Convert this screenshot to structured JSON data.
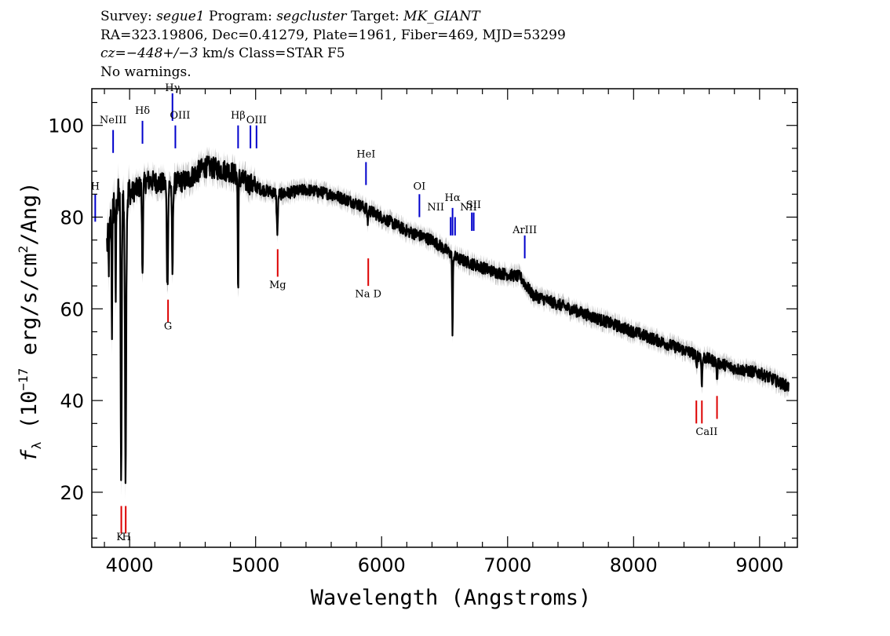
{
  "header": {
    "line1": {
      "survey_label": "Survey: ",
      "survey": "segue1",
      "program_label": " Program: ",
      "program": "segcluster",
      "target_label": " Target: ",
      "target": "MK_GIANT"
    },
    "line2": "RA=323.19806, Dec=0.41279, Plate=1961, Fiber=469, MJD=53299",
    "line3": {
      "cz_prefix": "cz",
      "cz_mid": "=",
      "cz_value": "−448+/−3",
      "cz_suffix": " km/s Class=STAR F5"
    },
    "line4": "No warnings."
  },
  "chart_data": {
    "type": "line",
    "xlabel": "Wavelength (Angstroms)",
    "ylabel": "fλ (10⁻¹⁷ erg/s/cm²/Ang)",
    "xlim": [
      3700,
      9300
    ],
    "ylim": [
      8,
      108
    ],
    "xticks": [
      4000,
      5000,
      6000,
      7000,
      8000,
      9000
    ],
    "yticks": [
      20,
      40,
      60,
      80,
      100
    ],
    "grid": false,
    "colors": {
      "flux": "#000000",
      "error": "#bfbfbf",
      "emission": "#0000cc",
      "absorption": "#dd0000"
    },
    "continuum": [
      [
        3820,
        74
      ],
      [
        3880,
        84
      ],
      [
        3950,
        84
      ],
      [
        4050,
        86
      ],
      [
        4150,
        88
      ],
      [
        4300,
        87
      ],
      [
        4450,
        88
      ],
      [
        4600,
        91
      ],
      [
        4800,
        90
      ],
      [
        4900,
        88
      ],
      [
        5050,
        86
      ],
      [
        5200,
        85
      ],
      [
        5400,
        86
      ],
      [
        5600,
        85
      ],
      [
        5800,
        83
      ],
      [
        6000,
        80
      ],
      [
        6200,
        77
      ],
      [
        6400,
        75
      ],
      [
        6500,
        73
      ],
      [
        6600,
        71
      ],
      [
        6700,
        70
      ],
      [
        6900,
        68
      ],
      [
        7100,
        67
      ],
      [
        7200,
        63
      ],
      [
        7400,
        61
      ],
      [
        7600,
        59
      ],
      [
        7800,
        57
      ],
      [
        8000,
        55
      ],
      [
        8200,
        53
      ],
      [
        8400,
        51
      ],
      [
        8600,
        49
      ],
      [
        8800,
        47
      ],
      [
        9000,
        46
      ],
      [
        9230,
        43
      ]
    ],
    "absorption_features": [
      [
        3835,
        70,
        4
      ],
      [
        3860,
        56,
        3
      ],
      [
        3889,
        61,
        3
      ],
      [
        3933,
        19,
        4
      ],
      [
        3968,
        26,
        5
      ],
      [
        4102,
        68,
        4
      ],
      [
        4300,
        65,
        5
      ],
      [
        4340,
        67,
        4
      ],
      [
        4861,
        64,
        3
      ],
      [
        5172,
        77,
        5
      ],
      [
        5890,
        79,
        4
      ],
      [
        6563,
        54,
        3
      ],
      [
        8498,
        47,
        4
      ],
      [
        8542,
        44,
        4
      ],
      [
        8662,
        45,
        4
      ]
    ],
    "emission_lines": [
      {
        "label": "H",
        "x": 3727,
        "y0": 79,
        "y1": 85,
        "label_y": 86
      },
      {
        "label": "NeIII",
        "x": 3869,
        "y0": 94,
        "y1": 99,
        "label_y": 100.5
      },
      {
        "label": "Hδ",
        "x": 4102,
        "y0": 96,
        "y1": 101,
        "label_y": 102.5
      },
      {
        "label": "Hγ",
        "x": 4340,
        "y0": 101,
        "y1": 107,
        "label_y": 107.5
      },
      {
        "label": "OIII",
        "x": 4363,
        "y0": 95,
        "y1": 100,
        "label_y": 101.5
      },
      {
        "label": "Hβ",
        "x": 4861,
        "y0": 95,
        "y1": 100,
        "label_y": 101.5
      },
      {
        "label": "OIII",
        "x": 4959,
        "y0": 95,
        "y1": 100,
        "label_y": 100.5
      },
      {
        "label": "OIII",
        "x": 5007,
        "y0": 95,
        "y1": 100,
        "label_y": 100.5
      },
      {
        "label": "HeI",
        "x": 5876,
        "y0": 87,
        "y1": 92,
        "label_y": 93
      },
      {
        "label": "OI",
        "x": 6300,
        "y0": 80,
        "y1": 85,
        "label_y": 86
      },
      {
        "label": "NII",
        "x": 6548,
        "y0": 76,
        "y1": 80,
        "label_y": 81.5
      },
      {
        "label": "Hα",
        "x": 6563,
        "y0": 76,
        "y1": 82,
        "label_y": 83.5
      },
      {
        "label": "NII",
        "x": 6583,
        "y0": 76,
        "y1": 80,
        "label_y": 81.5
      },
      {
        "label": "SII",
        "x": 6716,
        "y0": 77,
        "y1": 81,
        "label_y": 82
      },
      {
        "label": "SII",
        "x": 6731,
        "y0": 77,
        "y1": 81,
        "label_y": 82
      },
      {
        "label": "ArIII",
        "x": 7136,
        "y0": 71,
        "y1": 76,
        "label_y": 76.5
      }
    ],
    "emission_labels": [
      {
        "text": "H",
        "x": 3727,
        "y": 86
      },
      {
        "text": "NeIII",
        "x": 3869,
        "y": 100.5
      },
      {
        "text": "Hδ",
        "x": 4102,
        "y": 102.5
      },
      {
        "text": "Hγ",
        "x": 4340,
        "y": 107.5
      },
      {
        "text": "OIII",
        "x": 4400,
        "y": 101.5
      },
      {
        "text": "Hβ",
        "x": 4861,
        "y": 101.5
      },
      {
        "text": "OIII",
        "x": 5007,
        "y": 100.5
      },
      {
        "text": "HeI",
        "x": 5876,
        "y": 93
      },
      {
        "text": "OI",
        "x": 6300,
        "y": 86
      },
      {
        "text": "NII",
        "x": 6430,
        "y": 81.5
      },
      {
        "text": "Hα",
        "x": 6563,
        "y": 83.5
      },
      {
        "text": "NII",
        "x": 6690,
        "y": 81.5
      },
      {
        "text": "SII",
        "x": 6730,
        "y": 82
      },
      {
        "text": "ArIII",
        "x": 7136,
        "y": 76.5
      }
    ],
    "absorption_lines": [
      {
        "x": 3934,
        "y0": 11,
        "y1": 17
      },
      {
        "x": 3969,
        "y0": 11,
        "y1": 17
      },
      {
        "x": 4305,
        "y0": 57,
        "y1": 62
      },
      {
        "x": 5175,
        "y0": 67,
        "y1": 73
      },
      {
        "x": 5894,
        "y0": 65,
        "y1": 71
      },
      {
        "x": 8498,
        "y0": 35,
        "y1": 40
      },
      {
        "x": 8542,
        "y0": 35,
        "y1": 40
      },
      {
        "x": 8662,
        "y0": 36,
        "y1": 41
      }
    ],
    "absorption_labels": [
      {
        "text": "K",
        "x": 3925,
        "y": 9.5
      },
      {
        "text": "H",
        "x": 3975,
        "y": 9.5
      },
      {
        "text": "G",
        "x": 4305,
        "y": 55.5
      },
      {
        "text": "Mg",
        "x": 5175,
        "y": 64.5
      },
      {
        "text": "Na D",
        "x": 5894,
        "y": 62.5
      },
      {
        "text": "CaII",
        "x": 8580,
        "y": 32.5
      }
    ]
  }
}
